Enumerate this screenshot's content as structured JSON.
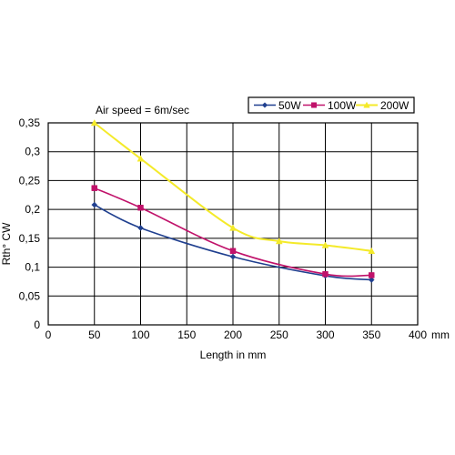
{
  "chart_data": {
    "type": "line",
    "title": "",
    "annotation": "Air speed = 6m/sec",
    "xlabel": "Length in mm",
    "x_unit": "mm",
    "ylabel": "Rth° CW",
    "xlim": [
      0,
      400
    ],
    "ylim": [
      0,
      0.35
    ],
    "x_ticks": [
      "0",
      "50",
      "100",
      "150",
      "200",
      "250",
      "300",
      "350",
      "400"
    ],
    "y_ticks": [
      "0",
      "0,05",
      "0,1",
      "0,15",
      "0,2",
      "0,25",
      "0,3",
      "0,35"
    ],
    "grid": true,
    "legend_position": "top-right",
    "series": [
      {
        "name": "50W",
        "color": "#1f3f8f",
        "marker": "diamond",
        "x": [
          50,
          100,
          200,
          300,
          350
        ],
        "y": [
          0.208,
          0.168,
          0.118,
          0.085,
          0.078
        ]
      },
      {
        "name": "100W",
        "color": "#c0126a",
        "marker": "square",
        "x": [
          50,
          100,
          200,
          300,
          350
        ],
        "y": [
          0.237,
          0.203,
          0.128,
          0.088,
          0.086
        ]
      },
      {
        "name": "200W",
        "color": "#f4ea2a",
        "marker": "triangle",
        "x": [
          50,
          100,
          200,
          250,
          300,
          350
        ],
        "y": [
          0.35,
          0.288,
          0.168,
          0.145,
          0.138,
          0.128
        ]
      }
    ]
  }
}
